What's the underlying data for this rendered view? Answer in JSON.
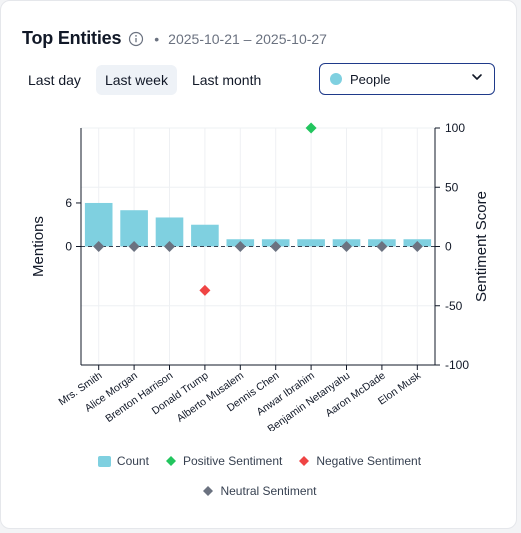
{
  "header": {
    "title": "Top Entities",
    "separator": "•",
    "date_range": "2025-10-21 – 2025-10-27"
  },
  "tabs": [
    {
      "label": "Last day",
      "active": false
    },
    {
      "label": "Last week",
      "active": true
    },
    {
      "label": "Last month",
      "active": false
    }
  ],
  "entity_select": {
    "value": "People",
    "swatch_color": "#7fd0e0",
    "icon": "chevron-down-icon"
  },
  "colors": {
    "count": "#7fd0e0",
    "positive": "#22c55e",
    "negative": "#ef4444",
    "neutral": "#6b7280"
  },
  "chart_data": {
    "type": "bar",
    "categories": [
      "Mrs. Smith",
      "Alice Morgan",
      "Brenton Harrison",
      "Donald Trump",
      "Alberto Musalem",
      "Dennis Chen",
      "Anwar Ibrahim",
      "Benjamin Netanyahu",
      "Aaron McDade",
      "Elon Musk"
    ],
    "series": [
      {
        "name": "Count",
        "axis": "left",
        "kind": "bar",
        "values": [
          6,
          5,
          4,
          3,
          1,
          1,
          1,
          1,
          1,
          1
        ]
      },
      {
        "name": "Positive Sentiment",
        "axis": "right",
        "kind": "point",
        "marker": "diamond",
        "values": [
          null,
          null,
          null,
          null,
          null,
          null,
          100,
          null,
          null,
          null
        ]
      },
      {
        "name": "Negative Sentiment",
        "axis": "right",
        "kind": "point",
        "marker": "diamond",
        "values": [
          null,
          null,
          null,
          -37,
          null,
          null,
          null,
          null,
          null,
          null
        ]
      },
      {
        "name": "Neutral Sentiment",
        "axis": "right",
        "kind": "point",
        "marker": "diamond",
        "values": [
          0,
          0,
          0,
          null,
          0,
          0,
          null,
          0,
          0,
          0
        ]
      }
    ],
    "ylabel": "Mentions",
    "y2label": "Sentiment Score",
    "ylim": [
      -16.33,
      16.33
    ],
    "y_ticks": [
      "6",
      "0"
    ],
    "y_tick_values": [
      6,
      0
    ],
    "y2lim": [
      -100,
      100
    ],
    "y2_ticks": [
      "100",
      "50",
      "0",
      "-50",
      "-100"
    ],
    "y2_tick_values": [
      100,
      50,
      0,
      -50,
      -100
    ],
    "grid": true,
    "legend": [
      {
        "label": "Count"
      },
      {
        "label": "Positive Sentiment"
      },
      {
        "label": "Negative Sentiment"
      },
      {
        "label": "Neutral Sentiment"
      }
    ],
    "legend_position": "bottom"
  }
}
